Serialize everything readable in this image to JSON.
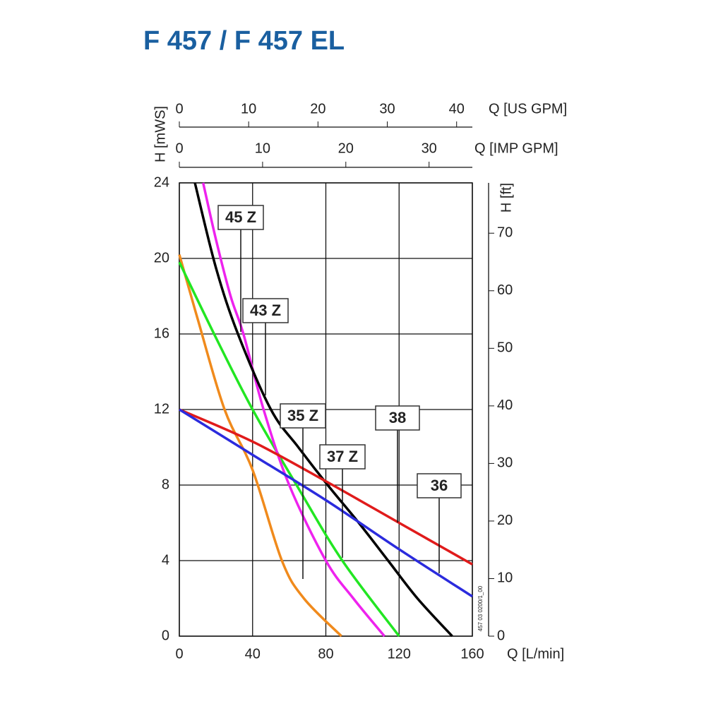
{
  "chart_data": {
    "type": "line",
    "title": "F 457 / F 457 EL",
    "x_label": "Q [L/min]",
    "y_label": "H [mWS]",
    "y2_label": "H [ft]",
    "x2_label": "Q [US GPM]",
    "x3_label": "Q [IMP GPM]",
    "note": "457 03 0200/1_00",
    "xlim": [
      0,
      160
    ],
    "xticks": [
      0,
      40,
      80,
      120,
      160
    ],
    "ylim": [
      0,
      24
    ],
    "yticks": [
      0,
      4,
      8,
      12,
      16,
      20,
      24
    ],
    "x2lim": [
      0,
      42.27
    ],
    "x2ticks": [
      0,
      10,
      20,
      30,
      40
    ],
    "x3lim": [
      0,
      35.2
    ],
    "x3ticks": [
      0,
      10,
      20,
      30
    ],
    "y2lim": [
      0,
      78.74
    ],
    "y2ticks": [
      0,
      10,
      20,
      30,
      40,
      50,
      60,
      70
    ],
    "grid": true,
    "series": [
      {
        "name": "35 Z",
        "color": "#f08a1c",
        "x": [
          0,
          10,
          24.7,
          40,
          56,
          68,
          88.5
        ],
        "values": [
          20.2,
          16.8,
          12,
          8.8,
          4,
          2,
          0
        ]
      },
      {
        "name": "37 Z",
        "color": "#22e622",
        "x": [
          0,
          20,
          40,
          64,
          89,
          120
        ],
        "values": [
          19.8,
          15.8,
          12,
          8,
          4,
          0
        ]
      },
      {
        "name": "45 Z",
        "color": "#ee22ee",
        "x": [
          13,
          20,
          28,
          35,
          46,
          60,
          80,
          95,
          112
        ],
        "values": [
          24,
          21,
          18,
          16,
          12,
          8,
          4,
          2,
          0
        ]
      },
      {
        "name": "43 Z",
        "color": "#000000",
        "x": [
          8.5,
          20,
          32,
          50,
          65,
          81,
          98,
          114,
          130,
          149
        ],
        "values": [
          24,
          19.5,
          16,
          12,
          10,
          8,
          6,
          4,
          2,
          0
        ]
      },
      {
        "name": "38",
        "color": "#e01b1b",
        "x": [
          0,
          40,
          80,
          120,
          160
        ],
        "values": [
          12,
          10.3,
          8.2,
          6,
          3.8
        ]
      },
      {
        "name": "36",
        "color": "#2b2bdd",
        "x": [
          0,
          40,
          80,
          120,
          160
        ],
        "values": [
          12,
          9.6,
          7.2,
          4.6,
          2.1
        ]
      }
    ]
  }
}
